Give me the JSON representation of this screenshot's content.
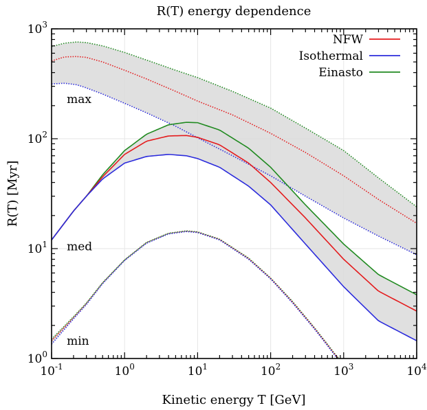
{
  "chart_data": {
    "type": "line",
    "title": "R(T) energy dependence",
    "xlabel": "Kinetic energy T [GeV]",
    "ylabel": "R(T) [Myr]",
    "xscale": "log",
    "yscale": "log",
    "xlim": [
      0.1,
      10000
    ],
    "ylim": [
      1,
      1000
    ],
    "grid": true,
    "legend_position": "top-right",
    "x_ticks": [
      {
        "value": 0.1,
        "base": "10",
        "exp": "-1"
      },
      {
        "value": 1,
        "base": "10",
        "exp": "0"
      },
      {
        "value": 10,
        "base": "10",
        "exp": "1"
      },
      {
        "value": 100,
        "base": "10",
        "exp": "2"
      },
      {
        "value": 1000,
        "base": "10",
        "exp": "3"
      },
      {
        "value": 10000,
        "base": "10",
        "exp": "4"
      }
    ],
    "y_ticks": [
      {
        "value": 1,
        "base": "10",
        "exp": "0"
      },
      {
        "value": 10,
        "base": "10",
        "exp": "1"
      },
      {
        "value": 100,
        "base": "10",
        "exp": "2"
      },
      {
        "value": 1000,
        "base": "10",
        "exp": "3"
      }
    ],
    "legend": [
      {
        "name": "NFW",
        "color": "#e41a1c"
      },
      {
        "name": "Isothermal",
        "color": "#2b2bdc"
      },
      {
        "name": "Einasto",
        "color": "#208a20"
      }
    ],
    "annotations": [
      {
        "text": "max",
        "x": 0.13,
        "y": 230
      },
      {
        "text": "med",
        "x": 0.13,
        "y": 10.5
      },
      {
        "text": "min",
        "x": 0.13,
        "y": 1.45
      }
    ],
    "series": [
      {
        "group": "max",
        "model": "Einasto",
        "color": "#208a20",
        "style": "dotted",
        "x": [
          0.1,
          0.15,
          0.22,
          0.3,
          0.5,
          1,
          2,
          5,
          10,
          30,
          100,
          300,
          1000,
          3000,
          10000
        ],
        "y": [
          690,
          740,
          760,
          750,
          700,
          610,
          520,
          420,
          360,
          270,
          190,
          125,
          78,
          44,
          24
        ]
      },
      {
        "group": "max",
        "model": "NFW",
        "color": "#e41a1c",
        "style": "dotted",
        "x": [
          0.1,
          0.15,
          0.22,
          0.3,
          0.5,
          1,
          2,
          5,
          10,
          30,
          100,
          300,
          1000,
          3000,
          10000
        ],
        "y": [
          510,
          555,
          560,
          550,
          500,
          420,
          350,
          270,
          220,
          165,
          112,
          75,
          46,
          28,
          17
        ]
      },
      {
        "group": "max",
        "model": "Isothermal",
        "color": "#2b2bdc",
        "style": "dotted",
        "x": [
          0.1,
          0.15,
          0.22,
          0.3,
          0.5,
          1,
          2,
          5,
          10,
          30,
          100,
          300,
          1000,
          3000,
          10000
        ],
        "y": [
          315,
          320,
          310,
          290,
          255,
          210,
          172,
          130,
          102,
          70,
          46,
          30,
          19,
          13,
          8.8
        ]
      },
      {
        "group": "med",
        "model": "Einasto",
        "color": "#208a20",
        "style": "solid",
        "x": [
          0.1,
          0.2,
          0.3,
          0.5,
          1,
          2,
          4,
          7,
          10,
          20,
          50,
          100,
          300,
          1000,
          3000,
          10000
        ],
        "y": [
          12,
          22,
          30,
          47,
          78,
          110,
          134,
          141,
          140,
          120,
          82,
          55,
          25,
          11,
          5.8,
          3.8
        ]
      },
      {
        "group": "med",
        "model": "NFW",
        "color": "#e41a1c",
        "style": "solid",
        "x": [
          0.1,
          0.2,
          0.3,
          0.5,
          1,
          2,
          4,
          7,
          10,
          20,
          50,
          100,
          300,
          1000,
          3000,
          10000
        ],
        "y": [
          12,
          22,
          30,
          45,
          72,
          95,
          106,
          107,
          103,
          88,
          60,
          40,
          19,
          8,
          4.1,
          2.7
        ]
      },
      {
        "group": "med",
        "model": "Isothermal",
        "color": "#2b2bdc",
        "style": "solid",
        "x": [
          0.1,
          0.2,
          0.3,
          0.5,
          1,
          2,
          4,
          7,
          10,
          20,
          50,
          100,
          300,
          1000,
          3000,
          10000
        ],
        "y": [
          12,
          22,
          30,
          43,
          60,
          69,
          72,
          70,
          66,
          55,
          37,
          25,
          11,
          4.5,
          2.2,
          1.45
        ]
      },
      {
        "group": "min",
        "model": "Einasto",
        "color": "#208a20",
        "style": "dotted",
        "x": [
          0.1,
          0.2,
          0.3,
          0.5,
          1,
          2,
          4,
          7,
          10,
          20,
          50,
          100,
          200,
          400,
          600,
          800,
          950
        ],
        "y": [
          1.5,
          2.4,
          3.2,
          4.9,
          7.9,
          11.4,
          13.8,
          14.5,
          14.2,
          12.2,
          8.2,
          5.4,
          3.3,
          1.9,
          1.35,
          1.05,
          0.95
        ]
      },
      {
        "group": "min",
        "model": "NFW",
        "color": "#e41a1c",
        "style": "dotted",
        "x": [
          0.1,
          0.2,
          0.3,
          0.5,
          1,
          2,
          4,
          7,
          10,
          20,
          50,
          100,
          200,
          400,
          600,
          800,
          950
        ],
        "y": [
          1.45,
          2.35,
          3.15,
          4.85,
          7.85,
          11.3,
          13.7,
          14.4,
          14.1,
          12.1,
          8.1,
          5.35,
          3.25,
          1.88,
          1.33,
          1.04,
          0.94
        ]
      },
      {
        "group": "min",
        "model": "Isothermal",
        "color": "#2b2bdc",
        "style": "dotted",
        "x": [
          0.1,
          0.2,
          0.3,
          0.5,
          1,
          2,
          4,
          7,
          10,
          20,
          50,
          100,
          200,
          400,
          600,
          800,
          950
        ],
        "y": [
          1.35,
          2.3,
          3.1,
          4.8,
          7.8,
          11.2,
          13.6,
          14.3,
          14.0,
          12.0,
          8.0,
          5.3,
          3.2,
          1.85,
          1.31,
          1.02,
          0.93
        ]
      }
    ]
  }
}
